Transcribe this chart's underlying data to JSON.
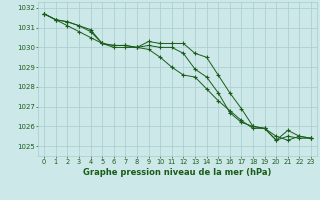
{
  "title": "Graphe pression niveau de la mer (hPa)",
  "background_color": "#cce8e8",
  "grid_color": "#a8cccc",
  "line_color": "#1a5c1a",
  "xlim": [
    -0.5,
    23.5
  ],
  "ylim": [
    1024.5,
    1032.3
  ],
  "yticks": [
    1025,
    1026,
    1027,
    1028,
    1029,
    1030,
    1031,
    1032
  ],
  "xticks": [
    0,
    1,
    2,
    3,
    4,
    5,
    6,
    7,
    8,
    9,
    10,
    11,
    12,
    13,
    14,
    15,
    16,
    17,
    18,
    19,
    20,
    21,
    22,
    23
  ],
  "series1": [
    1031.7,
    1031.4,
    1031.3,
    1031.1,
    1030.9,
    1030.2,
    1030.1,
    1030.1,
    1030.0,
    1030.3,
    1030.2,
    1030.2,
    1030.2,
    1029.7,
    1029.5,
    1028.6,
    1027.7,
    1026.9,
    1026.0,
    1025.9,
    1025.5,
    1025.3,
    1025.5,
    1025.4
  ],
  "series2": [
    1031.7,
    1031.4,
    1031.3,
    1031.1,
    1030.8,
    1030.2,
    1030.1,
    1030.1,
    1030.0,
    1030.1,
    1030.0,
    1030.0,
    1029.7,
    1028.9,
    1028.5,
    1027.7,
    1026.7,
    1026.2,
    1026.0,
    1025.9,
    1025.3,
    1025.5,
    1025.4,
    1025.4
  ],
  "series3": [
    1031.7,
    1031.4,
    1031.1,
    1030.8,
    1030.5,
    1030.2,
    1030.0,
    1030.0,
    1030.0,
    1029.9,
    1029.5,
    1029.0,
    1028.6,
    1028.5,
    1027.9,
    1027.3,
    1026.8,
    1026.3,
    1025.9,
    1025.9,
    1025.3,
    1025.8,
    1025.5,
    1025.4
  ],
  "ylabel_fontsize": 5,
  "xlabel_fontsize": 5,
  "title_fontsize": 6,
  "marker_size": 3,
  "linewidth": 0.7
}
